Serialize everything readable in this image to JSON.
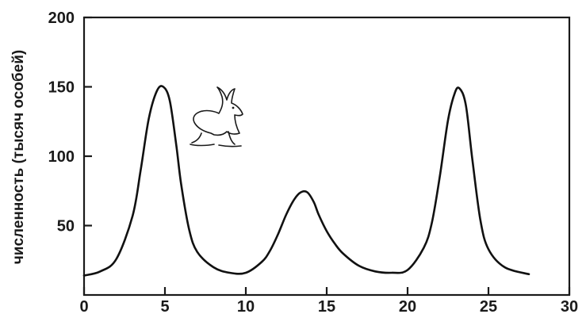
{
  "chart_data": {
    "type": "line",
    "title": "",
    "xlabel": "",
    "ylabel": "численность (тысяч особей)",
    "xlim": [
      0,
      30
    ],
    "ylim": [
      0,
      200
    ],
    "xticks": [
      0,
      5,
      10,
      15,
      20,
      25,
      30
    ],
    "yticks": [
      50,
      100,
      150,
      200
    ],
    "grid": false,
    "legend": "none",
    "icon": "hare-icon",
    "series": [
      {
        "x": [
          0,
          1,
          2,
          3,
          3.5,
          4,
          4.5,
          4.9,
          5.3,
          5.7,
          6,
          6.5,
          7,
          8,
          9,
          10,
          11,
          11.5,
          12,
          12.5,
          13,
          13.4,
          13.8,
          14.2,
          14.5,
          15,
          15.5,
          16,
          17,
          18,
          19,
          20,
          21,
          21.5,
          22,
          22.5,
          22.9,
          23.2,
          23.6,
          24,
          24.5,
          25,
          26,
          27.5
        ],
        "y": [
          14,
          17,
          26,
          57,
          90,
          127,
          147,
          150,
          140,
          108,
          80,
          47,
          31,
          20,
          16,
          16,
          24,
          32,
          44,
          58,
          69,
          74,
          74,
          67,
          58,
          46,
          37,
          30,
          21,
          17,
          16,
          18,
          34,
          52,
          86,
          126,
          145,
          149,
          137,
          98,
          54,
          33,
          20,
          15
        ]
      }
    ]
  }
}
